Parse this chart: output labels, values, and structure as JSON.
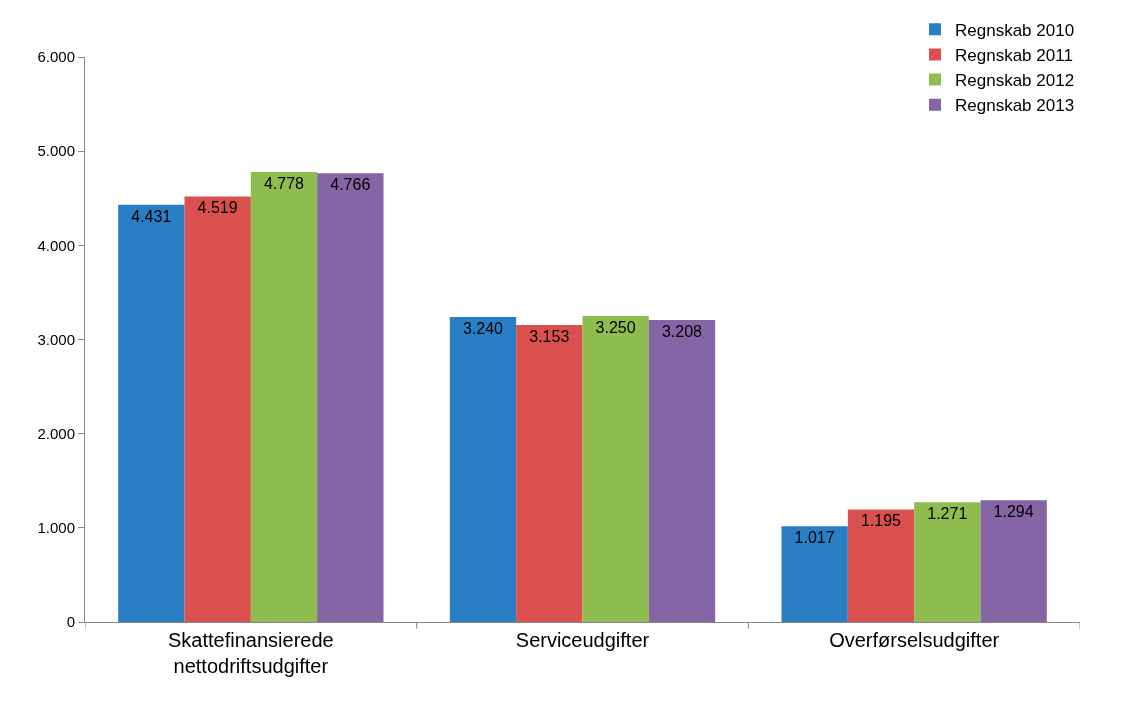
{
  "chart_data": {
    "type": "bar",
    "categories": [
      "Skattefinansierede\nnettodriftsudgifter",
      "Serviceudgifter",
      "Overførselsudgifter"
    ],
    "series": [
      {
        "name": "Regnskab 2010",
        "color": "#2a7fc4",
        "values": [
          4431,
          3240,
          1017
        ],
        "value_labels": [
          "4.431",
          "3.240",
          "1.017"
        ]
      },
      {
        "name": "Regnskab 2011",
        "color": "#d9504e",
        "values": [
          4519,
          3153,
          1195
        ],
        "value_labels": [
          "4.519",
          "3.153",
          "1.195"
        ]
      },
      {
        "name": "Regnskab 2012",
        "color": "#8fbc4f",
        "values": [
          4778,
          3250,
          1271
        ],
        "value_labels": [
          "4.778",
          "3.250",
          "1.271"
        ]
      },
      {
        "name": "Regnskab 2013",
        "color": "#8565a5",
        "values": [
          4766,
          3208,
          1294
        ],
        "value_labels": [
          "4.766",
          "3.208",
          "1.294"
        ]
      }
    ],
    "ylim": [
      0,
      6000
    ],
    "yticks": [
      {
        "value": 0,
        "label": "0"
      },
      {
        "value": 1000,
        "label": "1.000"
      },
      {
        "value": 2000,
        "label": "2.000"
      },
      {
        "value": 3000,
        "label": "3.000"
      },
      {
        "value": 4000,
        "label": "4.000"
      },
      {
        "value": 5000,
        "label": "5.000"
      },
      {
        "value": 6000,
        "label": "6.000"
      }
    ],
    "legend": "top right"
  }
}
